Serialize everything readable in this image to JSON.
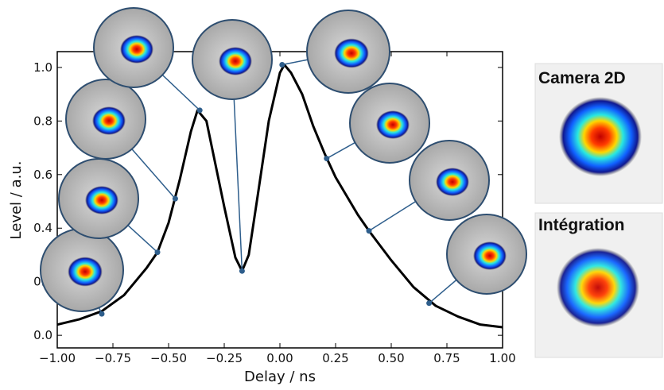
{
  "chart_data": {
    "type": "line",
    "xlabel": "Delay / ns",
    "ylabel": "Level / a.u.",
    "x": [
      -1.0,
      -0.9,
      -0.8,
      -0.7,
      -0.6,
      -0.55,
      -0.5,
      -0.45,
      -0.4,
      -0.37,
      -0.33,
      -0.3,
      -0.25,
      -0.2,
      -0.17,
      -0.14,
      -0.1,
      -0.05,
      0.0,
      0.02,
      0.05,
      0.1,
      0.15,
      0.2,
      0.25,
      0.3,
      0.35,
      0.4,
      0.5,
      0.6,
      0.7,
      0.8,
      0.9,
      1.0
    ],
    "series": [
      {
        "color": "#000000",
        "values": [
          0.04,
          0.06,
          0.09,
          0.15,
          0.25,
          0.31,
          0.42,
          0.58,
          0.76,
          0.84,
          0.8,
          0.68,
          0.48,
          0.29,
          0.24,
          0.3,
          0.52,
          0.8,
          0.98,
          1.01,
          0.98,
          0.9,
          0.78,
          0.68,
          0.59,
          0.52,
          0.45,
          0.39,
          0.28,
          0.18,
          0.11,
          0.07,
          0.04,
          0.03
        ]
      }
    ],
    "points": {
      "color": "#2e5e8c",
      "x": [
        -0.8,
        -0.55,
        -0.47,
        -0.36,
        -0.17,
        0.01,
        0.21,
        0.4,
        0.67
      ],
      "y": [
        0.08,
        0.31,
        0.51,
        0.84,
        0.24,
        1.01,
        0.66,
        0.39,
        0.12
      ]
    },
    "xlim": [
      -1.0,
      1.0
    ],
    "ylim": [
      -0.047,
      1.059
    ],
    "xticks": [
      {
        "value": -1.0,
        "label": "−1.00"
      },
      {
        "value": -0.75,
        "label": "−0.75"
      },
      {
        "value": -0.5,
        "label": "−0.50"
      },
      {
        "value": -0.25,
        "label": "−0.25"
      },
      {
        "value": 0.0,
        "label": "0.00"
      },
      {
        "value": 0.25,
        "label": "0.25"
      },
      {
        "value": 0.5,
        "label": "0.50"
      },
      {
        "value": 0.75,
        "label": "0.75"
      },
      {
        "value": 1.0,
        "label": "1.00"
      }
    ],
    "yticks": [
      {
        "value": 0.0,
        "label": "0.0"
      },
      {
        "value": 0.2,
        "label": "0.2"
      },
      {
        "value": 0.4,
        "label": "0.4"
      },
      {
        "value": 0.6,
        "label": "0.6"
      },
      {
        "value": 0.8,
        "label": "0.8"
      },
      {
        "value": 1.0,
        "label": "1.0"
      }
    ],
    "panels": [
      "Camera 2D",
      "Intégration"
    ]
  }
}
